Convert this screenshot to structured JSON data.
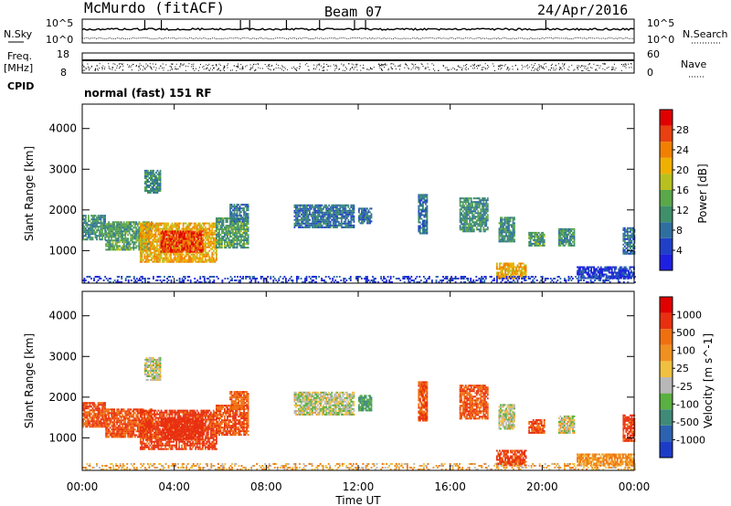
{
  "header": {
    "station": "McMurdo (fitACF)",
    "beam": "Beam 07",
    "date": "24/Apr/2016"
  },
  "noise_panel": {
    "left_label": "N.Sky",
    "right_label": "N.Search",
    "tick_top": "10^5",
    "tick_bottom": "10^0"
  },
  "freq_panel": {
    "left_label_1": "Freq.",
    "left_label_2": "[MHz]",
    "left_tick_top": "18",
    "left_tick_bottom": "8",
    "right_label": "Nave",
    "right_tick_top": "60",
    "right_tick_bottom": "0"
  },
  "cpid": {
    "label": "CPID",
    "text": "normal (fast) 151 RF"
  },
  "chart_data": [
    {
      "type": "heatmap",
      "quantity": "Power",
      "ylabel": "Slant Range [km]",
      "xlabel": "Time UT",
      "ylim": [
        200,
        4600
      ],
      "yticks": [
        "1000",
        "2000",
        "3000",
        "4000"
      ],
      "colorbar_label": "Power [dB]",
      "colorbar_ticks": [
        "4",
        "8",
        "12",
        "16",
        "20",
        "24",
        "28"
      ],
      "colorbar_colors": [
        "#1f1fe0",
        "#2040c8",
        "#2f6fa0",
        "#3f8f6a",
        "#5aa84a",
        "#b8c020",
        "#f0b000",
        "#f08000",
        "#e84010",
        "#e00000"
      ],
      "regions": [
        {
          "t0": 0.0,
          "t1": 1.0,
          "r0": 1250,
          "r1": 1850,
          "level": 12
        },
        {
          "t0": 1.0,
          "t1": 3.0,
          "r0": 1000,
          "r1": 1700,
          "level": 14
        },
        {
          "t0": 2.5,
          "t1": 5.8,
          "r0": 700,
          "r1": 1650,
          "level": 22
        },
        {
          "t0": 3.4,
          "t1": 5.2,
          "r0": 950,
          "r1": 1450,
          "level": 28
        },
        {
          "t0": 5.8,
          "t1": 7.2,
          "r0": 1050,
          "r1": 1800,
          "level": 14
        },
        {
          "t0": 6.4,
          "t1": 7.2,
          "r0": 1700,
          "r1": 2150,
          "level": 10
        },
        {
          "t0": 2.7,
          "t1": 3.4,
          "r0": 2400,
          "r1": 2950,
          "level": 12
        },
        {
          "t0": 9.2,
          "t1": 11.8,
          "r0": 1550,
          "r1": 2100,
          "level": 10
        },
        {
          "t0": 12.0,
          "t1": 12.6,
          "r0": 1650,
          "r1": 2050,
          "level": 10
        },
        {
          "t0": 14.6,
          "t1": 15.0,
          "r0": 1400,
          "r1": 2350,
          "level": 10
        },
        {
          "t0": 16.4,
          "t1": 17.6,
          "r0": 1450,
          "r1": 2300,
          "level": 12
        },
        {
          "t0": 18.1,
          "t1": 18.8,
          "r0": 1200,
          "r1": 1800,
          "level": 12
        },
        {
          "t0": 19.4,
          "t1": 20.1,
          "r0": 1100,
          "r1": 1450,
          "level": 14
        },
        {
          "t0": 20.7,
          "t1": 21.4,
          "r0": 1100,
          "r1": 1550,
          "level": 12
        },
        {
          "t0": 23.5,
          "t1": 24.0,
          "r0": 900,
          "r1": 1550,
          "level": 10
        },
        {
          "t0": 18.0,
          "t1": 19.3,
          "r0": 300,
          "r1": 700,
          "level": 22
        },
        {
          "t0": 21.5,
          "t1": 24.0,
          "r0": 300,
          "r1": 600,
          "level": 6
        },
        {
          "t0": 0.0,
          "t1": 24.0,
          "r0": 200,
          "r1": 380,
          "level": 6
        }
      ]
    },
    {
      "type": "heatmap",
      "quantity": "Velocity",
      "ylabel": "Slant Range [km]",
      "xlabel": "Time UT",
      "ylim": [
        200,
        4600
      ],
      "yticks": [
        "1000",
        "2000",
        "3000",
        "4000"
      ],
      "xticks": [
        "00:00",
        "04:00",
        "08:00",
        "12:00",
        "16:00",
        "20:00",
        "00:00"
      ],
      "xlim": [
        0,
        24
      ],
      "colorbar_label": "Velocity [m s^-1]",
      "colorbar_ticks": [
        "1000",
        "500",
        "100",
        "25",
        "-25",
        "-100",
        "-500",
        "-1000"
      ],
      "colorbar_colors": [
        "#1c3cc8",
        "#2c62b0",
        "#3f8a78",
        "#5ab040",
        "#b8b8b8",
        "#f0c040",
        "#f09020",
        "#f07010",
        "#e83010",
        "#e00000"
      ],
      "regions": [
        {
          "t0": 0.0,
          "t1": 1.0,
          "r0": 1250,
          "r1": 1850,
          "level": -300
        },
        {
          "t0": 1.0,
          "t1": 3.0,
          "r0": 1000,
          "r1": 1700,
          "level": -300
        },
        {
          "t0": 2.5,
          "t1": 5.8,
          "r0": 700,
          "r1": 1650,
          "level": -350
        },
        {
          "t0": 3.4,
          "t1": 5.2,
          "r0": 950,
          "r1": 1450,
          "level": -400
        },
        {
          "t0": 5.8,
          "t1": 7.2,
          "r0": 1050,
          "r1": 1800,
          "level": -300
        },
        {
          "t0": 6.4,
          "t1": 7.2,
          "r0": 1700,
          "r1": 2150,
          "level": -250
        },
        {
          "t0": 2.7,
          "t1": 3.4,
          "r0": 2400,
          "r1": 2950,
          "level": 60
        },
        {
          "t0": 9.2,
          "t1": 11.8,
          "r0": 1550,
          "r1": 2100,
          "level": 60
        },
        {
          "t0": 12.0,
          "t1": 12.6,
          "r0": 1650,
          "r1": 2050,
          "level": 200
        },
        {
          "t0": 14.6,
          "t1": 15.0,
          "r0": 1400,
          "r1": 2350,
          "level": -300
        },
        {
          "t0": 16.4,
          "t1": 17.6,
          "r0": 1450,
          "r1": 2300,
          "level": -300
        },
        {
          "t0": 18.1,
          "t1": 18.8,
          "r0": 1200,
          "r1": 1800,
          "level": 60
        },
        {
          "t0": 19.4,
          "t1": 20.1,
          "r0": 1100,
          "r1": 1450,
          "level": -300
        },
        {
          "t0": 20.7,
          "t1": 21.4,
          "r0": 1100,
          "r1": 1550,
          "level": 60
        },
        {
          "t0": 23.5,
          "t1": 24.0,
          "r0": 900,
          "r1": 1550,
          "level": -350
        },
        {
          "t0": 18.0,
          "t1": 19.3,
          "r0": 300,
          "r1": 700,
          "level": -350
        },
        {
          "t0": 21.5,
          "t1": 24.0,
          "r0": 300,
          "r1": 600,
          "level": -80
        },
        {
          "t0": 0.0,
          "t1": 24.0,
          "r0": 200,
          "r1": 380,
          "level": -30
        }
      ]
    }
  ]
}
